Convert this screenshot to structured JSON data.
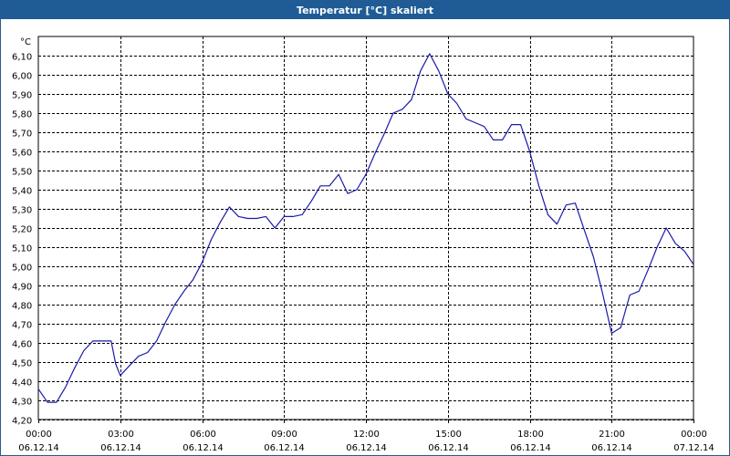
{
  "window": {
    "title": "Temperatur [°C] skaliert"
  },
  "chart_data": {
    "type": "line",
    "title": "Temperatur [°C] skaliert",
    "ylabel": "°C",
    "ylim": [
      4.2,
      6.2
    ],
    "yticks": [
      "6,10",
      "6,00",
      "5,90",
      "5,80",
      "5,70",
      "5,60",
      "5,50",
      "5,40",
      "5,30",
      "5,20",
      "5,10",
      "5,00",
      "4,90",
      "4,80",
      "4,70",
      "4,60",
      "4,50",
      "4,40",
      "4,30",
      "4,20"
    ],
    "xticks": [
      {
        "time": "00:00",
        "date": "06.12.14"
      },
      {
        "time": "03:00",
        "date": "06.12.14"
      },
      {
        "time": "06:00",
        "date": "06.12.14"
      },
      {
        "time": "09:00",
        "date": "06.12.14"
      },
      {
        "time": "12:00",
        "date": "06.12.14"
      },
      {
        "time": "15:00",
        "date": "06.12.14"
      },
      {
        "time": "18:00",
        "date": "06.12.14"
      },
      {
        "time": "21:00",
        "date": "06.12.14"
      },
      {
        "time": "00:00",
        "date": "07.12.14"
      }
    ],
    "grid": true,
    "series": [
      {
        "color": "#1a1aa8",
        "x": [
          "06.12.14 00:00",
          "06.12.14 00:20",
          "06.12.14 00:40",
          "06.12.14 01:00",
          "06.12.14 01:20",
          "06.12.14 01:40",
          "06.12.14 02:00",
          "06.12.14 02:20",
          "06.12.14 02:40",
          "06.12.14 02:50",
          "06.12.14 03:00",
          "06.12.14 03:20",
          "06.12.14 03:40",
          "06.12.14 04:00",
          "06.12.14 04:20",
          "06.12.14 04:40",
          "06.12.14 05:00",
          "06.12.14 05:20",
          "06.12.14 05:40",
          "06.12.14 06:00",
          "06.12.14 06:20",
          "06.12.14 06:40",
          "06.12.14 07:00",
          "06.12.14 07:20",
          "06.12.14 07:40",
          "06.12.14 08:00",
          "06.12.14 08:20",
          "06.12.14 08:40",
          "06.12.14 09:00",
          "06.12.14 09:20",
          "06.12.14 09:40",
          "06.12.14 10:00",
          "06.12.14 10:20",
          "06.12.14 10:40",
          "06.12.14 11:00",
          "06.12.14 11:20",
          "06.12.14 11:40",
          "06.12.14 12:00",
          "06.12.14 12:20",
          "06.12.14 12:40",
          "06.12.14 13:00",
          "06.12.14 13:20",
          "06.12.14 13:40",
          "06.12.14 14:00",
          "06.12.14 14:20",
          "06.12.14 14:40",
          "06.12.14 15:00",
          "06.12.14 15:20",
          "06.12.14 15:40",
          "06.12.14 16:00",
          "06.12.14 16:20",
          "06.12.14 16:40",
          "06.12.14 17:00",
          "06.12.14 17:20",
          "06.12.14 17:40",
          "06.12.14 18:00",
          "06.12.14 18:20",
          "06.12.14 18:40",
          "06.12.14 19:00",
          "06.12.14 19:20",
          "06.12.14 19:40",
          "06.12.14 20:00",
          "06.12.14 20:20",
          "06.12.14 20:40",
          "06.12.14 21:00",
          "06.12.14 21:20",
          "06.12.14 21:40",
          "06.12.14 22:00",
          "06.12.14 22:20",
          "06.12.14 22:40",
          "06.12.14 23:00",
          "06.12.14 23:20",
          "06.12.14 23:40",
          "07.12.14 00:00"
        ],
        "values": [
          4.36,
          4.29,
          4.29,
          4.37,
          4.47,
          4.56,
          4.61,
          4.61,
          4.61,
          4.49,
          4.43,
          4.48,
          4.53,
          4.55,
          4.61,
          4.71,
          4.8,
          4.87,
          4.93,
          5.02,
          5.14,
          5.23,
          5.31,
          5.26,
          5.25,
          5.25,
          5.26,
          5.2,
          5.26,
          5.26,
          5.27,
          5.34,
          5.42,
          5.42,
          5.48,
          5.38,
          5.4,
          5.48,
          5.59,
          5.69,
          5.8,
          5.82,
          5.87,
          6.02,
          6.11,
          6.02,
          5.9,
          5.85,
          5.77,
          5.75,
          5.73,
          5.66,
          5.66,
          5.74,
          5.74,
          5.6,
          5.42,
          5.27,
          5.22,
          5.32,
          5.33,
          5.19,
          5.05,
          4.86,
          4.65,
          4.68,
          4.85,
          4.87,
          4.98,
          5.1,
          5.2,
          5.12,
          5.08,
          5.01
        ]
      }
    ]
  }
}
